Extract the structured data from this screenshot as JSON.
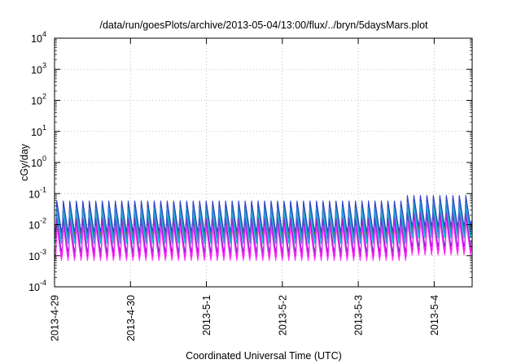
{
  "chart_data": {
    "type": "line",
    "title": "/data/run/goesPlots/archive/2013-05-04/13:00/flux/../bryn/5daysMars.plot",
    "xlabel": "Coordinated Universal Time (UTC)",
    "ylabel": "cGy/day",
    "yscale": "log",
    "ylim": [
      0.0001,
      10000
    ],
    "y_ticks": [
      {
        "base": "10",
        "exp": "-4"
      },
      {
        "base": "10",
        "exp": "-3"
      },
      {
        "base": "10",
        "exp": "-2"
      },
      {
        "base": "10",
        "exp": "-1"
      },
      {
        "base": "10",
        "exp": "0"
      },
      {
        "base": "10",
        "exp": "1"
      },
      {
        "base": "10",
        "exp": "2"
      },
      {
        "base": "10",
        "exp": "3"
      },
      {
        "base": "10",
        "exp": "4"
      }
    ],
    "x_range_days": [
      0,
      5.5
    ],
    "x_ticks": [
      {
        "day": 0,
        "label": "2013-4-29"
      },
      {
        "day": 1,
        "label": "2013-4-30"
      },
      {
        "day": 2,
        "label": "2013-5-1"
      },
      {
        "day": 3,
        "label": "2013-5-2"
      },
      {
        "day": 4,
        "label": "2013-5-3"
      },
      {
        "day": 5,
        "label": "2013-5-4"
      }
    ],
    "grid": true,
    "period_days": 0.0855,
    "first_peak_day": 0.03,
    "series": [
      {
        "color": "#d81b1b",
        "peak": 0.052,
        "trough": 0.0045,
        "rise_to": 0.0075
      },
      {
        "color": "#4a8c2a",
        "peak": 0.045,
        "trough": 0.004,
        "rise_to": 0.0068
      },
      {
        "color": "#2a3fd0",
        "peak": 0.058,
        "trough": 0.006,
        "rise_to": 0.009
      },
      {
        "color": "#e000e0",
        "peak": 0.012,
        "trough": 0.0009,
        "rise_to": 0.0014
      },
      {
        "color": "#00c8c8",
        "peak": 0.022,
        "trough": 0.0025,
        "rise_to": 0.004
      },
      {
        "color": "#1f8fd8",
        "peak": 0.035,
        "trough": 0.0035,
        "rise_to": 0.0055
      },
      {
        "color": "#8a2ad0",
        "peak": 0.016,
        "trough": 0.0013,
        "rise_to": 0.002
      },
      {
        "color": "#ff33ff",
        "peak": 0.009,
        "trough": 0.0007,
        "rise_to": 0.0011
      }
    ],
    "late_boost": {
      "start_day": 4.6,
      "factor": 1.5
    }
  }
}
